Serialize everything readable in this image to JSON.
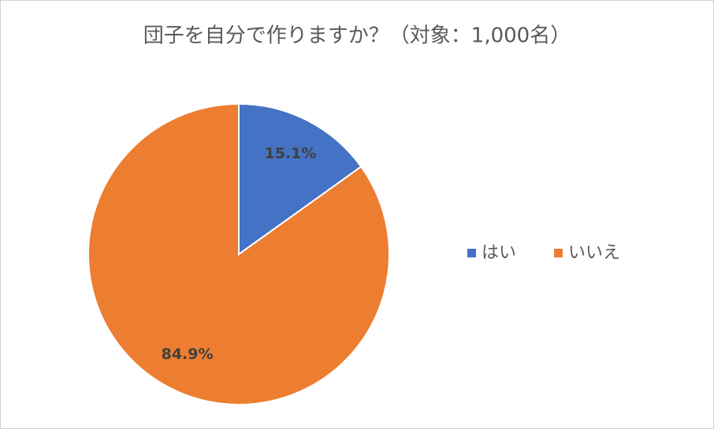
{
  "chart_data": {
    "type": "pie",
    "title": "団子を自分で作りますか？（対象：1,000名）",
    "categories": [
      "はい",
      "いいえ"
    ],
    "values": [
      15.1,
      84.9
    ],
    "value_labels": [
      "15.1%",
      "84.9%"
    ],
    "colors": [
      "#4472c4",
      "#ed7d31"
    ],
    "legend": "right"
  }
}
